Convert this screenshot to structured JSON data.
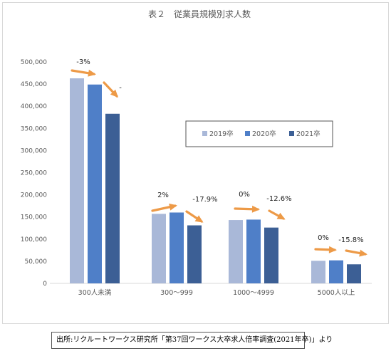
{
  "chart_data": {
    "type": "bar",
    "title": "表２　従業員規模別求人数",
    "categories": [
      "300人未満",
      "300～999",
      "1000～4999",
      "5000人以上"
    ],
    "series": [
      {
        "name": "2019卒",
        "color": "#a9b8d8",
        "values": [
          463000,
          157000,
          143000,
          51000
        ]
      },
      {
        "name": "2020卒",
        "color": "#4f7fc8",
        "values": [
          449000,
          160000,
          144000,
          52000
        ]
      },
      {
        "name": "2021卒",
        "color": "#3c5f95",
        "values": [
          383000,
          131000,
          126000,
          43000
        ]
      }
    ],
    "ylim": [
      0,
      500000
    ],
    "yticks": [
      "0",
      "50,000",
      "100,000",
      "150,000",
      "200,000",
      "250,000",
      "300,000",
      "350,000",
      "400,000",
      "450,000",
      "500,000"
    ],
    "grid": false,
    "legend_position": "center-right",
    "annotations": [
      {
        "category": 0,
        "change": "-3%",
        "extra": "-"
      },
      {
        "category": 1,
        "change": "2%",
        "extra": "-17.9%"
      },
      {
        "category": 2,
        "change": "0%",
        "extra": "-12.6%"
      },
      {
        "category": 3,
        "change": "0%",
        "extra": "-15.8%"
      }
    ],
    "arrow_color": "#ed9a47"
  },
  "source_note": "出所:リクルートワークス研究所「第37回ワークス大卒求人倍率調査(2021年卒)」より"
}
